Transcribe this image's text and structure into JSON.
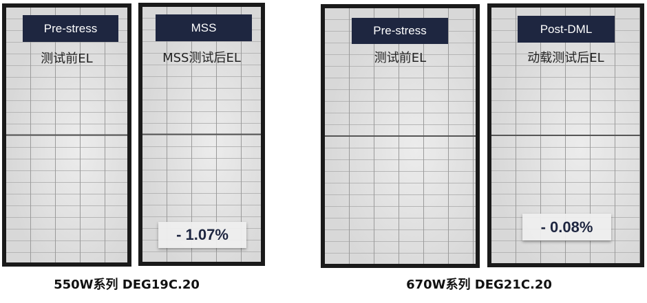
{
  "groups": [
    {
      "caption": "550W系列 DEG19C.20",
      "panels": [
        {
          "tag": "Pre-stress",
          "subtitle": "测试前EL"
        },
        {
          "tag": "MSS",
          "subtitle": "MSS测试后EL",
          "power_change": "- 1.07%"
        }
      ]
    },
    {
      "caption": "670W系列 DEG21C.20",
      "panels": [
        {
          "tag": "Pre-stress",
          "subtitle": "测试前EL"
        },
        {
          "tag": "Post-DML",
          "subtitle": "动载测试后EL",
          "power_change": "- 0.08%"
        }
      ]
    }
  ],
  "colors": {
    "tag_bg": "#1e2640",
    "tag_text": "#ffffff"
  }
}
